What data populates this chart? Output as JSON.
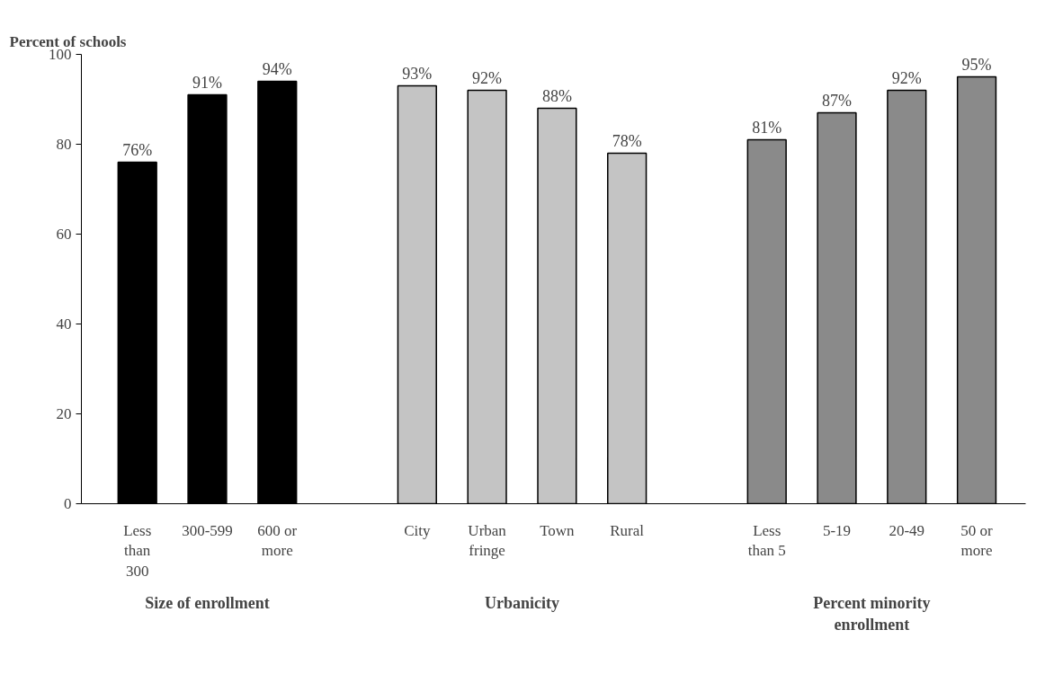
{
  "chart_data": {
    "type": "bar",
    "ylabel": "Percent of schools",
    "categories": [
      "Less than 300",
      "300-599",
      "600 or more",
      null,
      "City",
      "Urban fringe",
      "Town",
      "Rural",
      null,
      "Less than 5",
      "5-19",
      "20-49",
      "50 or more"
    ],
    "series": [
      {
        "color": "#000000",
        "values": [
          76,
          91,
          94,
          null,
          null,
          null,
          null,
          null,
          null,
          null,
          null,
          null,
          null
        ],
        "value_labels": [
          "76%",
          "91%",
          "94%",
          null,
          null,
          null,
          null,
          null,
          null,
          null,
          null,
          null,
          null
        ]
      },
      {
        "color": "#c4c4c4",
        "values": [
          null,
          null,
          null,
          null,
          93,
          92,
          88,
          78,
          null,
          null,
          null,
          null,
          null
        ],
        "value_labels": [
          null,
          null,
          null,
          null,
          "93%",
          "92%",
          "88%",
          "78%",
          null,
          null,
          null,
          null,
          null
        ]
      },
      {
        "color": "#8a8a8a",
        "values": [
          null,
          null,
          null,
          null,
          null,
          null,
          null,
          null,
          null,
          81,
          87,
          92,
          95
        ],
        "value_labels": [
          null,
          null,
          null,
          null,
          null,
          null,
          null,
          null,
          null,
          "81%",
          "87%",
          "92%",
          "95%"
        ]
      }
    ],
    "ylim": [
      0,
      100
    ],
    "yticks": [
      0,
      20,
      40,
      60,
      80,
      100
    ],
    "grid": false,
    "annotations": [
      "Size of enrollment",
      "Urbanicity",
      "Percent minority enrollment"
    ]
  }
}
